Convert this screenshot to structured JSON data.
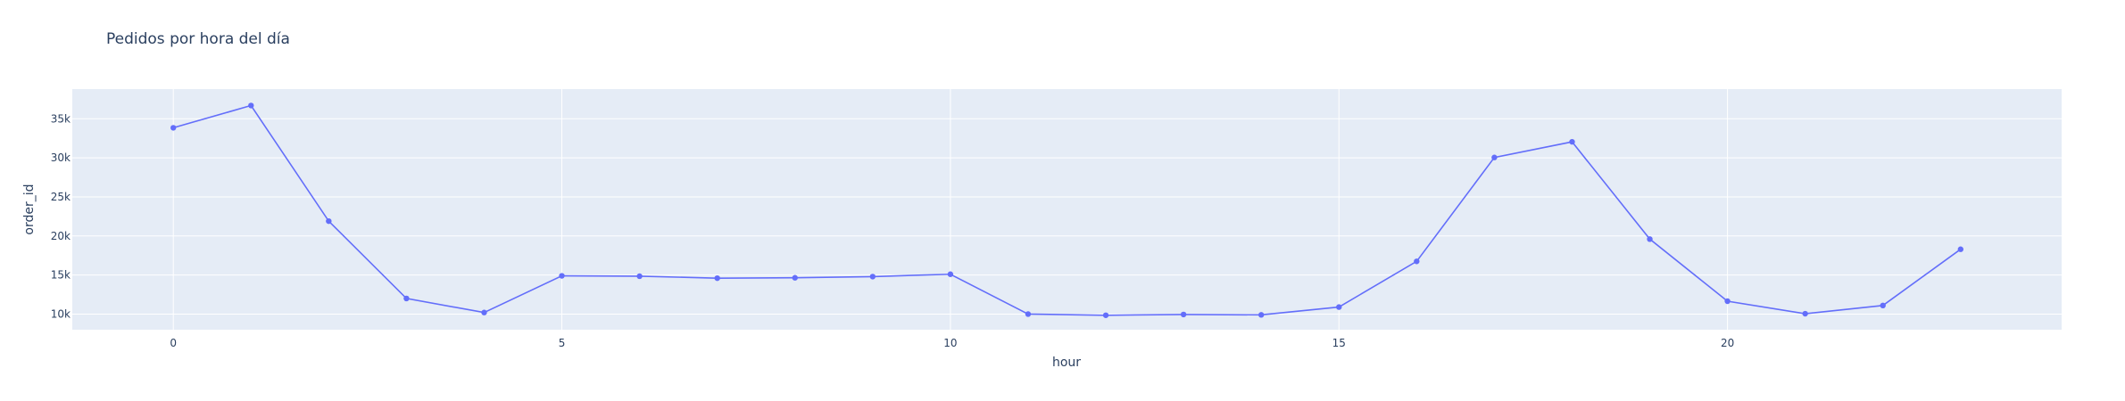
{
  "chart_data": {
    "type": "line",
    "title": "Pedidos por hora del día",
    "xlabel": "hour",
    "ylabel": "order_id",
    "x": [
      0,
      1,
      2,
      3,
      4,
      5,
      6,
      7,
      8,
      9,
      10,
      11,
      12,
      13,
      14,
      15,
      16,
      17,
      18,
      19,
      20,
      21,
      22,
      23
    ],
    "series": [
      {
        "values": [
          33850,
          36700,
          21900,
          12000,
          10200,
          14900,
          14850,
          14600,
          14650,
          14800,
          15100,
          10000,
          9850,
          9950,
          9900,
          10900,
          16750,
          30050,
          32050,
          19600,
          11650,
          10050,
          11100,
          18300
        ]
      }
    ],
    "xticks": [
      0,
      5,
      10,
      15,
      20
    ],
    "xtick_labels": [
      "0",
      "5",
      "10",
      "15",
      "20"
    ],
    "yticks": [
      10000,
      15000,
      20000,
      25000,
      30000,
      35000
    ],
    "ytick_labels": [
      "10k",
      "15k",
      "20k",
      "25k",
      "30k",
      "35k"
    ],
    "xlim": [
      -1.3,
      24.3
    ],
    "ylim": [
      8000,
      38800
    ],
    "grid": true,
    "colors": {
      "line": "#636efa",
      "plot_bg": "#e5ecf6",
      "grid": "#ffffff",
      "text": "#2a3f5f"
    }
  }
}
